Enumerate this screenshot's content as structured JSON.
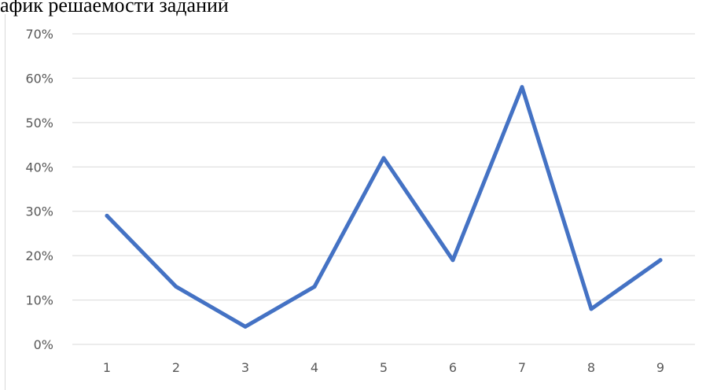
{
  "title_fragment": "афик решаемости заданий",
  "chart_data": {
    "type": "line",
    "title": "",
    "xlabel": "",
    "ylabel": "",
    "categories": [
      "1",
      "2",
      "3",
      "4",
      "5",
      "6",
      "7",
      "8",
      "9"
    ],
    "series": [
      {
        "values": [
          0.29,
          0.13,
          0.04,
          0.13,
          0.42,
          0.19,
          0.58,
          0.08,
          0.19
        ],
        "color": "#4472c4"
      }
    ],
    "y_ticks": [
      "0%",
      "10%",
      "20%",
      "30%",
      "40%",
      "50%",
      "60%",
      "70%"
    ],
    "ylim": [
      0,
      0.7
    ],
    "grid": true,
    "gridline_color": "#d9d9d9",
    "legend": "none"
  }
}
